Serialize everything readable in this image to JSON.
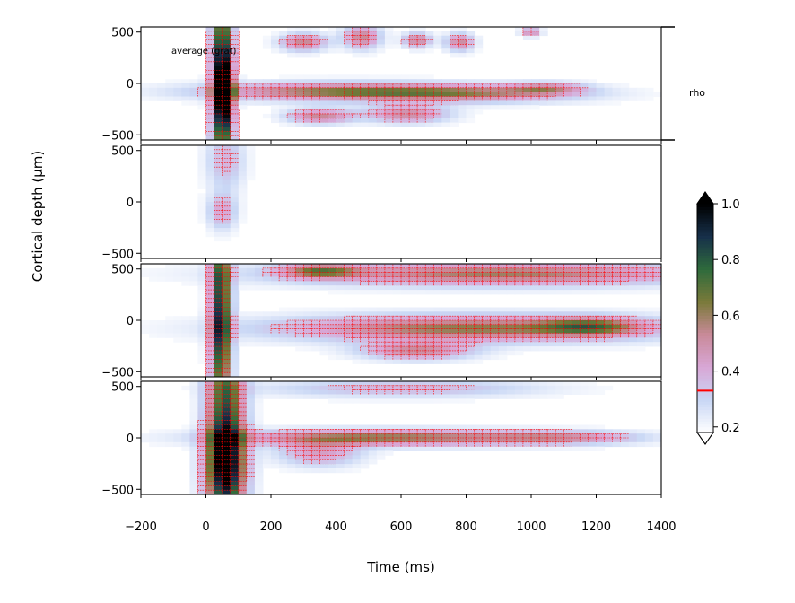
{
  "chart_data": {
    "type": "heatmap",
    "panels": 4,
    "xlabel": "Time (ms)",
    "ylabel": "Cortical depth (µm)",
    "xlim": [
      -200,
      1400
    ],
    "ylim": [
      -550,
      550
    ],
    "x_ticks": [
      -200,
      0,
      200,
      400,
      600,
      800,
      1000,
      1200,
      1400
    ],
    "x_tick_labels": [
      "−200",
      "0",
      "200",
      "400",
      "600",
      "800",
      "1000",
      "1200",
      "1400"
    ],
    "y_ticks": [
      500,
      0,
      -500
    ],
    "y_tick_labels": [
      "500",
      "0",
      "−500"
    ],
    "annotation": "average (grat)",
    "rho_label": "rho",
    "colorbar": {
      "range": [
        0.18,
        1.0
      ],
      "ticks": [
        0.2,
        0.4,
        0.6,
        0.8,
        1.0
      ],
      "tick_labels": [
        "0.2",
        "0.4",
        "0.6",
        "0.8",
        "1.0"
      ],
      "threshold": 0.33,
      "threshold_color": "#ff0000",
      "extend": "both",
      "colors": [
        "#ffffff",
        "#c9d7f5",
        "#d8a7d6",
        "#c98a9a",
        "#7a7a3a",
        "#2f6b3c",
        "#17304a",
        "#000000"
      ]
    },
    "contour_color": "#ff0000",
    "series": [
      {
        "blobs": [
          {
            "t": 50,
            "d": 0,
            "st": 22,
            "sd": 600,
            "a": 0.9
          },
          {
            "t": 60,
            "d": -100,
            "st": 18,
            "sd": 200,
            "a": 0.25
          },
          {
            "t": 380,
            "d": -80,
            "st": 280,
            "sd": 60,
            "a": 0.4
          },
          {
            "t": 800,
            "d": -100,
            "st": 250,
            "sd": 60,
            "a": 0.34
          },
          {
            "t": 1050,
            "d": -50,
            "st": 80,
            "sd": 40,
            "a": 0.26
          },
          {
            "t": 300,
            "d": 400,
            "st": 50,
            "sd": 60,
            "a": 0.36
          },
          {
            "t": 480,
            "d": 450,
            "st": 40,
            "sd": 80,
            "a": 0.36
          },
          {
            "t": 650,
            "d": 420,
            "st": 30,
            "sd": 50,
            "a": 0.35
          },
          {
            "t": 780,
            "d": 400,
            "st": 30,
            "sd": 60,
            "a": 0.34
          },
          {
            "t": 1000,
            "d": 500,
            "st": 20,
            "sd": 30,
            "a": 0.34
          },
          {
            "t": 350,
            "d": -320,
            "st": 70,
            "sd": 50,
            "a": 0.35
          },
          {
            "t": 620,
            "d": -300,
            "st": 90,
            "sd": 60,
            "a": 0.33
          }
        ]
      },
      {
        "blobs": [
          {
            "t": 50,
            "d": -100,
            "st": 30,
            "sd": 120,
            "a": 0.24
          },
          {
            "t": 60,
            "d": 400,
            "st": 40,
            "sd": 200,
            "a": 0.2
          }
        ]
      },
      {
        "blobs": [
          {
            "t": 45,
            "d": 0,
            "st": 22,
            "sd": 700,
            "a": 0.72
          },
          {
            "t": 820,
            "d": -80,
            "st": 420,
            "sd": 90,
            "a": 0.45
          },
          {
            "t": 1180,
            "d": -60,
            "st": 100,
            "sd": 60,
            "a": 0.32
          },
          {
            "t": 900,
            "d": 450,
            "st": 450,
            "sd": 80,
            "a": 0.42
          },
          {
            "t": 350,
            "d": 480,
            "st": 80,
            "sd": 50,
            "a": 0.36
          },
          {
            "t": 650,
            "d": -300,
            "st": 120,
            "sd": 60,
            "a": 0.33
          }
        ]
      },
      {
        "blobs": [
          {
            "t": 60,
            "d": 0,
            "st": 40,
            "sd": 700,
            "a": 0.7
          },
          {
            "t": 60,
            "d": -300,
            "st": 45,
            "sd": 250,
            "a": 0.3
          },
          {
            "t": 550,
            "d": 0,
            "st": 330,
            "sd": 55,
            "a": 0.45
          },
          {
            "t": 1100,
            "d": 0,
            "st": 170,
            "sd": 45,
            "a": 0.26
          },
          {
            "t": 350,
            "d": -150,
            "st": 90,
            "sd": 90,
            "a": 0.26
          },
          {
            "t": 600,
            "d": 480,
            "st": 300,
            "sd": 60,
            "a": 0.2
          }
        ]
      }
    ]
  }
}
